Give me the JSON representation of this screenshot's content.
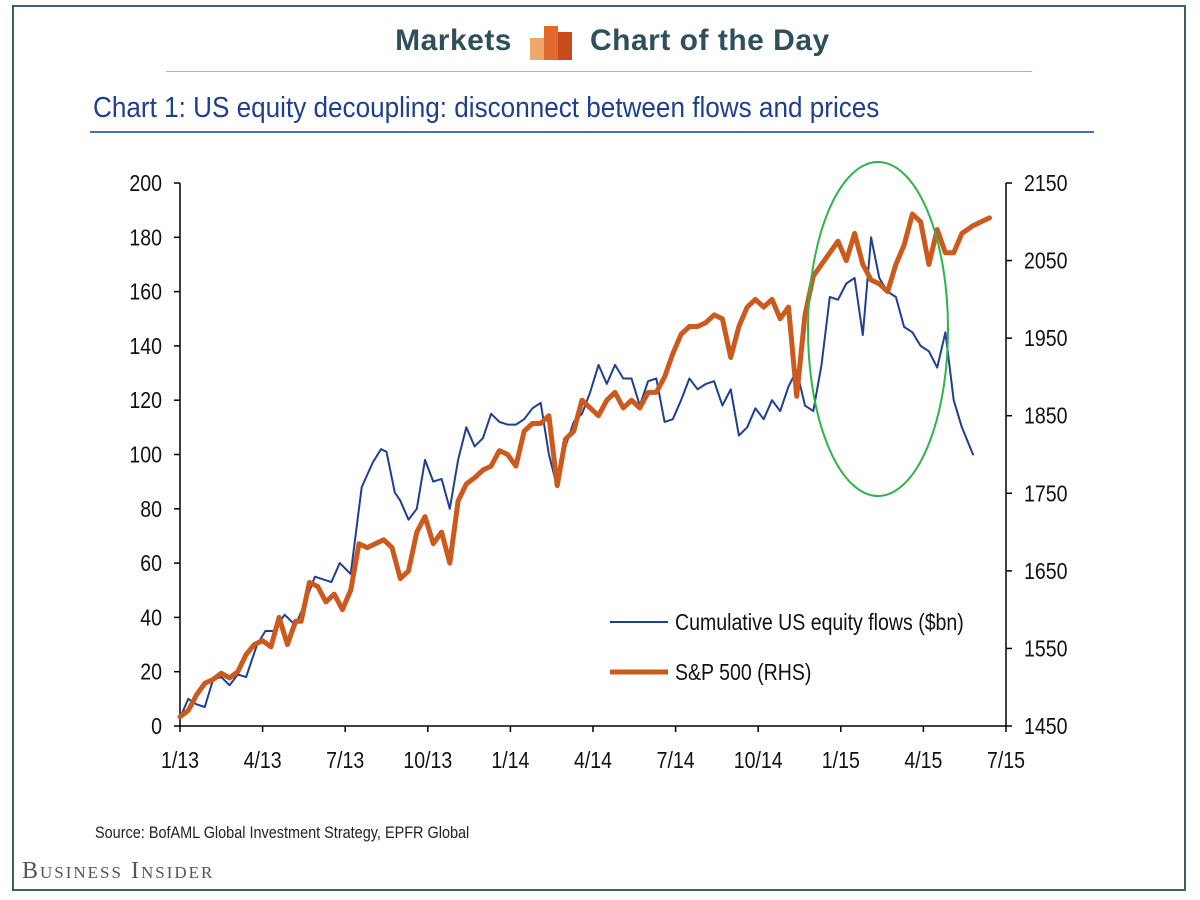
{
  "header": {
    "left_label": "Markets",
    "right_label": "Chart of the Day",
    "logo_colors": [
      "#f0a868",
      "#e06a2c",
      "#c94a1c"
    ]
  },
  "chart_title": "Chart 1: US equity decoupling: disconnect between flows and prices",
  "source": "Source: BofAML Global Investment Strategy, EPFR Global",
  "brand": "Business Insider",
  "chart_data": {
    "type": "line",
    "x_tick_labels": [
      "1/13",
      "4/13",
      "7/13",
      "10/13",
      "1/14",
      "4/14",
      "7/14",
      "10/14",
      "1/15",
      "4/15",
      "7/15"
    ],
    "x_unit": "months since Jan 2013",
    "xlim": [
      0,
      30
    ],
    "y_left": {
      "ticks": [
        0,
        20,
        40,
        60,
        80,
        100,
        120,
        140,
        160,
        180,
        200
      ],
      "ylim": [
        0,
        200
      ]
    },
    "y_right": {
      "ticks": [
        1450,
        1550,
        1650,
        1750,
        1850,
        1950,
        2050,
        2150
      ],
      "ylim": [
        1450,
        2150
      ]
    },
    "grid": false,
    "legend_position": "bottom-right",
    "annotation": {
      "shape": "ellipse",
      "color": "#2fb34a"
    },
    "series": [
      {
        "name": "Cumulative US equity flows ($bn)",
        "axis": "left",
        "color": "#1f3f8f",
        "x": [
          0,
          0.3,
          0.6,
          0.9,
          1.2,
          1.5,
          1.8,
          2.1,
          2.4,
          2.8,
          3.1,
          3.4,
          3.8,
          4.2,
          4.6,
          4.9,
          5.2,
          5.5,
          5.8,
          6.2,
          6.6,
          7.0,
          7.3,
          7.5,
          7.8,
          8.0,
          8.3,
          8.6,
          8.9,
          9.2,
          9.5,
          9.8,
          10.1,
          10.4,
          10.7,
          11.0,
          11.3,
          11.6,
          11.9,
          12.2,
          12.5,
          12.8,
          13.1,
          13.4,
          13.7,
          14.0,
          14.3,
          14.6,
          14.9,
          15.2,
          15.5,
          15.8,
          16.1,
          16.4,
          16.7,
          17.0,
          17.3,
          17.6,
          17.9,
          18.2,
          18.5,
          18.8,
          19.1,
          19.4,
          19.7,
          20.0,
          20.3,
          20.6,
          20.9,
          21.2,
          21.5,
          21.8,
          22.1,
          22.4,
          22.7,
          23.0,
          23.3,
          23.6,
          23.9,
          24.2,
          24.5,
          24.8,
          25.1,
          25.4,
          25.7,
          26.0,
          26.3,
          26.6,
          26.9,
          27.2,
          27.5,
          27.8,
          28.1,
          28.4,
          28.8
        ],
        "values": [
          3,
          10,
          8,
          7,
          17,
          18,
          15,
          19,
          18,
          30,
          35,
          35,
          41,
          37,
          47,
          55,
          54,
          53,
          60,
          56,
          88,
          97,
          102,
          101,
          86,
          83,
          76,
          80,
          98,
          90,
          91,
          80,
          98,
          110,
          103,
          106,
          115,
          112,
          111,
          111,
          113,
          117,
          119,
          100,
          88,
          103,
          112,
          115,
          123,
          133,
          126,
          133,
          128,
          128,
          118,
          127,
          128,
          112,
          113,
          120,
          128,
          124,
          126,
          127,
          118,
          124,
          107,
          110,
          117,
          113,
          120,
          116,
          125,
          131,
          118,
          116,
          133,
          158,
          157,
          163,
          165,
          144,
          180,
          165,
          160,
          158,
          147,
          145,
          140,
          138,
          132,
          145,
          120,
          110,
          100
        ]
      },
      {
        "name": "S&P 500 (RHS)",
        "axis": "right",
        "color": "#cc5a1e",
        "x": [
          0,
          0.3,
          0.6,
          0.9,
          1.2,
          1.5,
          1.8,
          2.1,
          2.4,
          2.7,
          3.0,
          3.3,
          3.6,
          3.9,
          4.2,
          4.4,
          4.7,
          5.0,
          5.3,
          5.6,
          5.9,
          6.2,
          6.5,
          6.8,
          7.1,
          7.4,
          7.7,
          8.0,
          8.3,
          8.6,
          8.9,
          9.2,
          9.5,
          9.8,
          10.1,
          10.4,
          10.7,
          11.0,
          11.3,
          11.6,
          11.9,
          12.2,
          12.5,
          12.8,
          13.1,
          13.4,
          13.7,
          14.0,
          14.3,
          14.6,
          14.9,
          15.2,
          15.5,
          15.8,
          16.1,
          16.4,
          16.7,
          17.0,
          17.3,
          17.6,
          17.9,
          18.2,
          18.5,
          18.8,
          19.1,
          19.4,
          19.7,
          20.0,
          20.3,
          20.6,
          20.9,
          21.2,
          21.5,
          21.8,
          22.1,
          22.4,
          22.7,
          23.0,
          23.3,
          23.6,
          23.9,
          24.2,
          24.5,
          24.8,
          25.1,
          25.4,
          25.7,
          26.0,
          26.3,
          26.6,
          26.9,
          27.2,
          27.5,
          27.8,
          28.1,
          28.4,
          28.8,
          29.1,
          29.4
        ],
        "values": [
          1462,
          1470,
          1490,
          1505,
          1510,
          1518,
          1512,
          1520,
          1542,
          1555,
          1560,
          1552,
          1590,
          1555,
          1585,
          1585,
          1635,
          1630,
          1610,
          1620,
          1600,
          1625,
          1685,
          1680,
          1685,
          1690,
          1680,
          1640,
          1650,
          1700,
          1720,
          1685,
          1700,
          1660,
          1740,
          1762,
          1770,
          1780,
          1785,
          1805,
          1800,
          1785,
          1830,
          1840,
          1840,
          1850,
          1760,
          1820,
          1830,
          1870,
          1860,
          1850,
          1870,
          1880,
          1860,
          1870,
          1860,
          1880,
          1880,
          1900,
          1930,
          1955,
          1965,
          1965,
          1970,
          1980,
          1975,
          1925,
          1965,
          1990,
          2000,
          1990,
          2000,
          1975,
          1990,
          1875,
          1980,
          2030,
          2045,
          2060,
          2075,
          2050,
          2085,
          2045,
          2025,
          2020,
          2010,
          2045,
          2070,
          2110,
          2100,
          2045,
          2090,
          2060,
          2060,
          2085,
          2095,
          2100,
          2105
        ]
      }
    ]
  }
}
